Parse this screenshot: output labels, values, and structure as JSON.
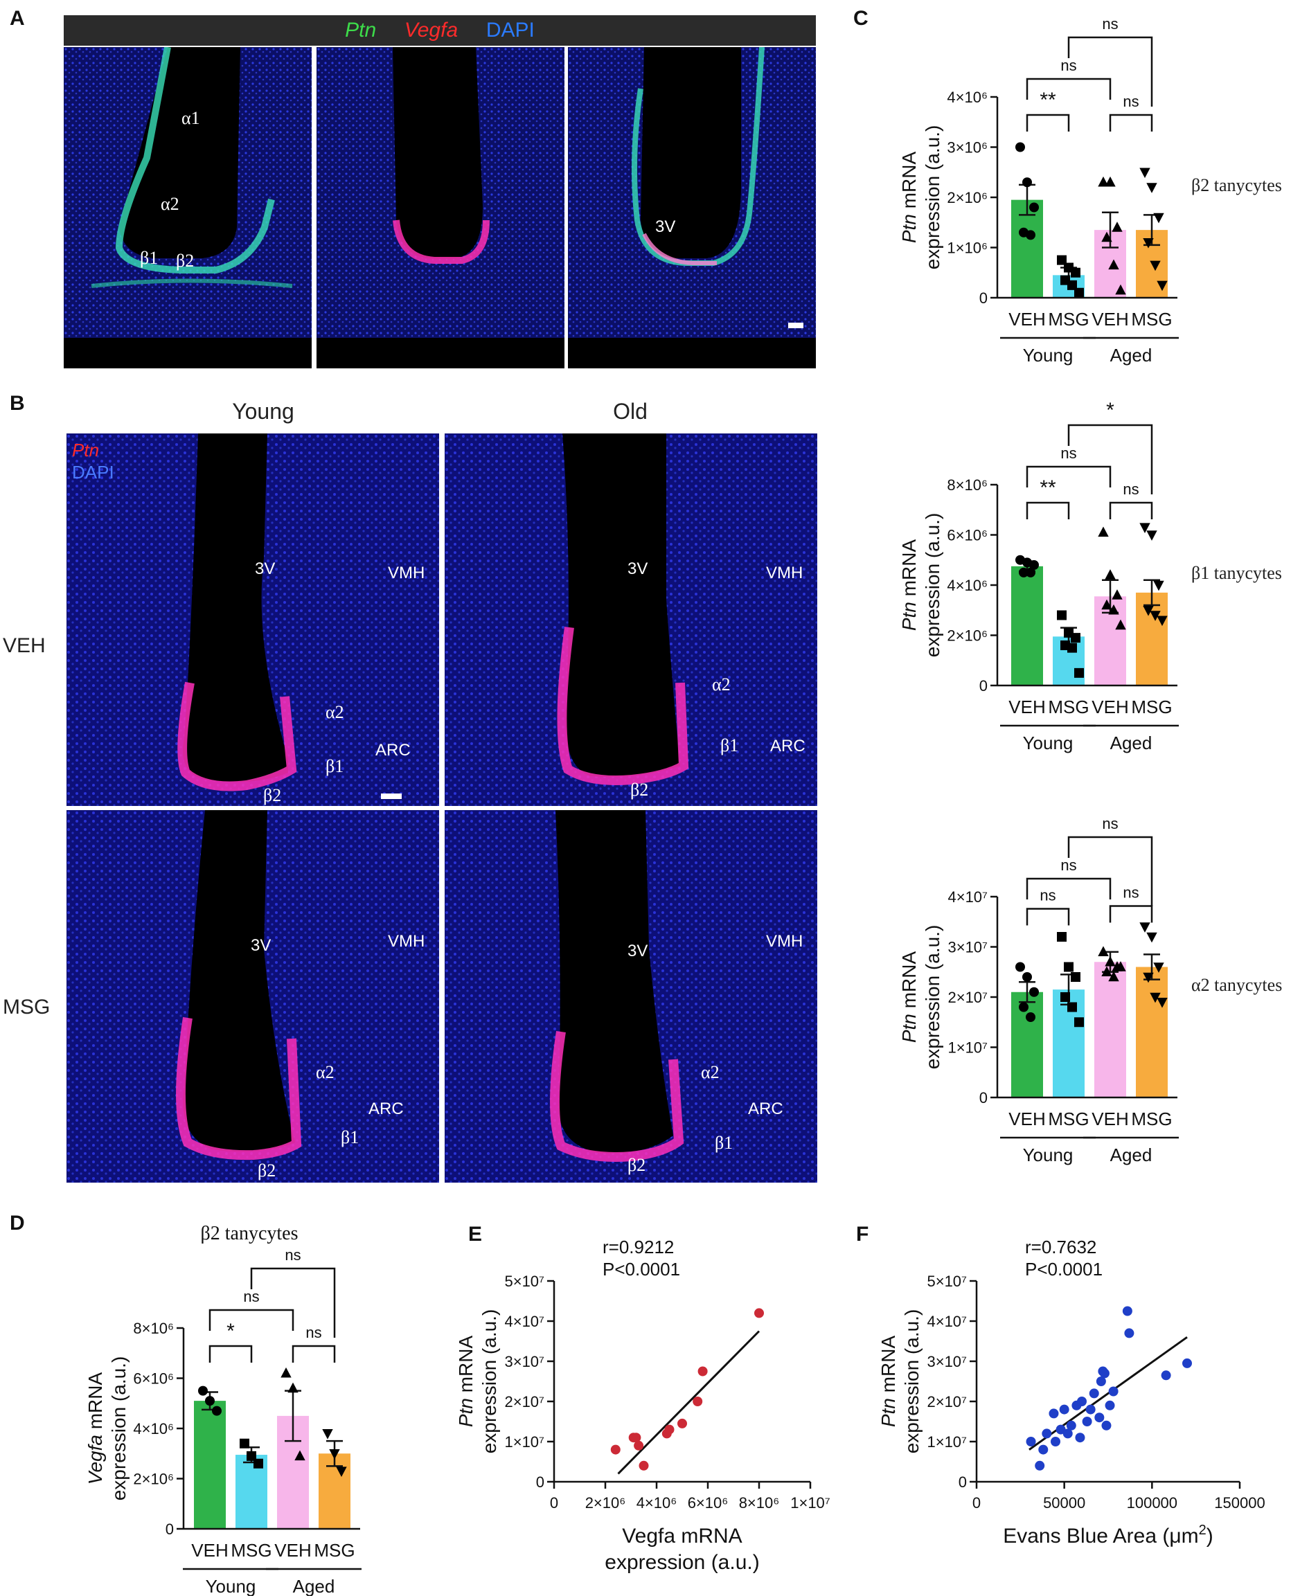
{
  "panel_letters": [
    "A",
    "B",
    "C",
    "D",
    "E",
    "F"
  ],
  "panel_a": {
    "header_labels": [
      "Ptn",
      "Vegfa",
      "DAPI"
    ],
    "header_colors": [
      "#3ddc4a",
      "#ff2b2b",
      "#2b7bff"
    ],
    "image1_labels": [
      "α1",
      "α2",
      "β1",
      "β2"
    ],
    "image3_labels": [
      "3V"
    ]
  },
  "panel_b": {
    "columns": [
      "Young",
      "Old"
    ],
    "rows": [
      "VEH",
      "MSG"
    ],
    "legend": [
      "Ptn",
      "DAPI"
    ],
    "legend_colors": [
      "#ff2b2b",
      "#2b7bff"
    ],
    "image_labels": {
      "ventricle": "3V",
      "vmh": "VMH",
      "arc": "ARC",
      "a2": "α2",
      "b1": "β1",
      "b2": "β2"
    }
  },
  "chart_data": [
    {
      "id": "C-top",
      "type": "bar",
      "categories": [
        "VEH",
        "MSG",
        "VEH",
        "MSG"
      ],
      "groups": [
        "Young",
        "Aged"
      ],
      "values": [
        1950000.0,
        450000.0,
        1350000.0,
        1350000.0
      ],
      "errors": [
        300000.0,
        150000.0,
        350000.0,
        300000.0
      ],
      "points": [
        [
          3000000.0,
          2300000.0,
          1800000.0,
          1300000.0,
          1250000.0
        ],
        [
          750000.0,
          600000.0,
          500000.0,
          350000.0,
          250000.0,
          100000.0
        ],
        [
          2300000.0,
          2300000.0,
          1400000.0,
          1200000.0,
          650000.0,
          150000.0
        ],
        [
          2500000.0,
          2200000.0,
          1600000.0,
          1100000.0,
          650000.0,
          250000.0
        ]
      ],
      "markers": [
        "circle",
        "square",
        "triangle",
        "triangle-down"
      ],
      "colors": [
        "#2fb24a",
        "#56d8ee",
        "#f7b6ea",
        "#f7ab3e"
      ],
      "ylim": [
        0,
        4000000.0
      ],
      "yticks": [
        "0",
        "1×10⁶",
        "2×10⁶",
        "3×10⁶",
        "4×10⁶"
      ],
      "ylabel_italic": "Ptn",
      "ylabel_line1": " mRNA",
      "ylabel_line2": "expression (a.u.)",
      "side_label": "β2 tanycytes",
      "sig": [
        {
          "from": 0,
          "to": 1,
          "label": "**",
          "level": 1
        },
        {
          "from": 0,
          "to": 2,
          "label": "ns",
          "level": 2
        },
        {
          "from": 2,
          "to": 3,
          "label": "ns",
          "level": 1
        },
        {
          "from": 1,
          "to": 3,
          "label": "ns",
          "level": 3
        }
      ]
    },
    {
      "id": "C-mid",
      "type": "bar",
      "categories": [
        "VEH",
        "MSG",
        "VEH",
        "MSG"
      ],
      "groups": [
        "Young",
        "Aged"
      ],
      "values": [
        4750000.0,
        1950000.0,
        3550000.0,
        3700000.0
      ],
      "errors": [
        200000.0,
        350000.0,
        650000.0,
        500000.0
      ],
      "points": [
        [
          5000000.0,
          4900000.0,
          4800000.0,
          4500000.0,
          4500000.0
        ],
        [
          2800000.0,
          2100000.0,
          1900000.0,
          1600000.0,
          1500000.0,
          500000.0
        ],
        [
          6100000.0,
          4400000.0,
          3600000.0,
          3200000.0,
          3000000.0,
          2400000.0
        ],
        [
          6300000.0,
          6000000.0,
          4000000.0,
          3000000.0,
          2800000.0,
          2600000.0
        ]
      ],
      "markers": [
        "circle",
        "square",
        "triangle",
        "triangle-down"
      ],
      "colors": [
        "#2fb24a",
        "#56d8ee",
        "#f7b6ea",
        "#f7ab3e"
      ],
      "ylim": [
        0,
        8000000.0
      ],
      "yticks": [
        "0",
        "2×10⁶",
        "4×10⁶",
        "6×10⁶",
        "8×10⁶"
      ],
      "ylabel_italic": "Ptn",
      "ylabel_line1": " mRNA",
      "ylabel_line2": "expression (a.u.)",
      "side_label": "β1 tanycytes",
      "sig": [
        {
          "from": 0,
          "to": 1,
          "label": "**",
          "level": 1
        },
        {
          "from": 0,
          "to": 2,
          "label": "ns",
          "level": 2
        },
        {
          "from": 2,
          "to": 3,
          "label": "ns",
          "level": 1
        },
        {
          "from": 1,
          "to": 3,
          "label": "*",
          "level": 3
        }
      ]
    },
    {
      "id": "C-bottom",
      "type": "bar",
      "categories": [
        "VEH",
        "MSG",
        "VEH",
        "MSG"
      ],
      "groups": [
        "Young",
        "Aged"
      ],
      "values": [
        21000000.0,
        21500000.0,
        27000000.0,
        26000000.0
      ],
      "errors": [
        2000000.0,
        3000000.0,
        2000000.0,
        2500000.0
      ],
      "points": [
        [
          26000000.0,
          24000000.0,
          21000000.0,
          18000000.0,
          16000000.0
        ],
        [
          32000000.0,
          26000000.0,
          24000000.0,
          20000000.0,
          18000000.0,
          15000000.0
        ],
        [
          29000000.0,
          27000000.0,
          26000000.0,
          25000000.0,
          24000000.0,
          26000000.0
        ],
        [
          34000000.0,
          32000000.0,
          26000000.0,
          24000000.0,
          20000000.0,
          19000000.0
        ]
      ],
      "markers": [
        "circle",
        "square",
        "triangle",
        "triangle-down"
      ],
      "colors": [
        "#2fb24a",
        "#56d8ee",
        "#f7b6ea",
        "#f7ab3e"
      ],
      "ylim": [
        0,
        40000000.0
      ],
      "yticks": [
        "0",
        "1×10⁷",
        "2×10⁷",
        "3×10⁷",
        "4×10⁷"
      ],
      "ylabel_italic": "Ptn",
      "ylabel_line1": " mRNA",
      "ylabel_line2": "expression (a.u.)",
      "side_label": "α2 tanycytes",
      "sig": [
        {
          "from": 0,
          "to": 1,
          "label": "ns",
          "level": 1
        },
        {
          "from": 0,
          "to": 2,
          "label": "ns",
          "level": 2
        },
        {
          "from": 2,
          "to": 3,
          "label": "ns",
          "level": 1
        },
        {
          "from": 1,
          "to": 3,
          "label": "ns",
          "level": 3
        }
      ]
    },
    {
      "id": "D",
      "type": "bar",
      "title": "β2 tanycytes",
      "categories": [
        "VEH",
        "MSG",
        "VEH",
        "MSG"
      ],
      "groups": [
        "Young",
        "Aged"
      ],
      "values": [
        5100000.0,
        2950000.0,
        4500000.0,
        3000000.0
      ],
      "errors": [
        350000.0,
        300000.0,
        1000000.0,
        500000.0
      ],
      "points": [
        [
          5500000.0,
          5100000.0,
          4700000.0
        ],
        [
          3400000.0,
          2900000.0,
          2600000.0
        ],
        [
          6200000.0,
          5600000.0,
          2900000.0
        ],
        [
          3800000.0,
          3000000.0,
          2300000.0
        ]
      ],
      "markers": [
        "circle",
        "square",
        "triangle",
        "triangle-down"
      ],
      "colors": [
        "#2fb24a",
        "#56d8ee",
        "#f7b6ea",
        "#f7ab3e"
      ],
      "ylim": [
        0,
        8000000.0
      ],
      "yticks": [
        "0",
        "2×10⁶",
        "4×10⁶",
        "6×10⁶",
        "8×10⁶"
      ],
      "ylabel_italic": "Vegfa",
      "ylabel_line1": " mRNA",
      "ylabel_line2": "expression (a.u.)",
      "sig": [
        {
          "from": 0,
          "to": 1,
          "label": "*",
          "level": 1
        },
        {
          "from": 0,
          "to": 2,
          "label": "ns",
          "level": 2
        },
        {
          "from": 2,
          "to": 3,
          "label": "ns",
          "level": 1
        },
        {
          "from": 1,
          "to": 3,
          "label": "ns",
          "level": 3
        }
      ]
    },
    {
      "id": "E",
      "type": "scatter",
      "x": [
        2400000.0,
        3100000.0,
        3200000.0,
        3300000.0,
        3500000.0,
        4400000.0,
        4500000.0,
        5000000.0,
        5600000.0,
        5800000.0,
        8000000.0
      ],
      "y": [
        8000000.0,
        11000000.0,
        11000000.0,
        9000000.0,
        4000000.0,
        12000000.0,
        13000000.0,
        14500000.0,
        20000000.0,
        27500000.0,
        42000000.0
      ],
      "fit": [
        [
          2500000.0,
          2000000.0
        ],
        [
          8000000.0,
          37500000.0
        ]
      ],
      "color": "#cc2a36",
      "xlim": [
        0,
        10000000.0
      ],
      "ylim": [
        0,
        50000000.0
      ],
      "xticks": [
        "0",
        "2×10⁶",
        "4×10⁶",
        "6×10⁶",
        "8×10⁶",
        "1×10⁷"
      ],
      "yticks": [
        "0",
        "1×10⁷",
        "2×10⁷",
        "3×10⁷",
        "4×10⁷",
        "5×10⁷"
      ],
      "xlabel_line1": "Vegfa mRNA",
      "xlabel_line2": "expression (a.u.)",
      "ylabel_italic": "Ptn",
      "ylabel_line1": " mRNA",
      "ylabel_line2": "expression (a.u.)",
      "annotation_r": "r=0.9212",
      "annotation_p": "P<0.0001"
    },
    {
      "id": "F",
      "type": "scatter",
      "x": [
        31000,
        36000,
        38000,
        40000,
        44000,
        45000,
        48000,
        50000,
        52000,
        54000,
        57000,
        59000,
        60000,
        63000,
        65000,
        67000,
        70000,
        71000,
        72000,
        73000,
        74000,
        76000,
        78000,
        86000,
        87000,
        108000,
        120000
      ],
      "y": [
        10000000.0,
        4000000.0,
        8000000.0,
        12000000.0,
        17000000.0,
        10000000.0,
        13000000.0,
        18000000.0,
        12000000.0,
        14000000.0,
        19000000.0,
        11000000.0,
        20000000.0,
        15000000.0,
        18000000.0,
        22000000.0,
        16000000.0,
        25000000.0,
        27500000.0,
        27000000.0,
        14000000.0,
        19000000.0,
        22500000.0,
        42500000.0,
        37000000.0,
        26500000.0,
        29500000.0
      ],
      "fit": [
        [
          30000,
          8000000.0
        ],
        [
          120000,
          36000000.0
        ]
      ],
      "color": "#1f3fc8",
      "xlim": [
        0,
        150000
      ],
      "ylim": [
        0,
        50000000.0
      ],
      "xticks": [
        "0",
        "50000",
        "100000",
        "150000"
      ],
      "yticks": [
        "0",
        "1×10⁷",
        "2×10⁷",
        "3×10⁷",
        "4×10⁷",
        "5×10⁷"
      ],
      "xlabel_line1": "Evans Blue Area (μm",
      "xlabel_sup": "2",
      "xlabel_end": ")",
      "ylabel_italic": "Ptn",
      "ylabel_line1": " mRNA",
      "ylabel_line2": "expression (a.u.)",
      "annotation_r": "r=0.7632",
      "annotation_p": "P<0.0001"
    }
  ]
}
